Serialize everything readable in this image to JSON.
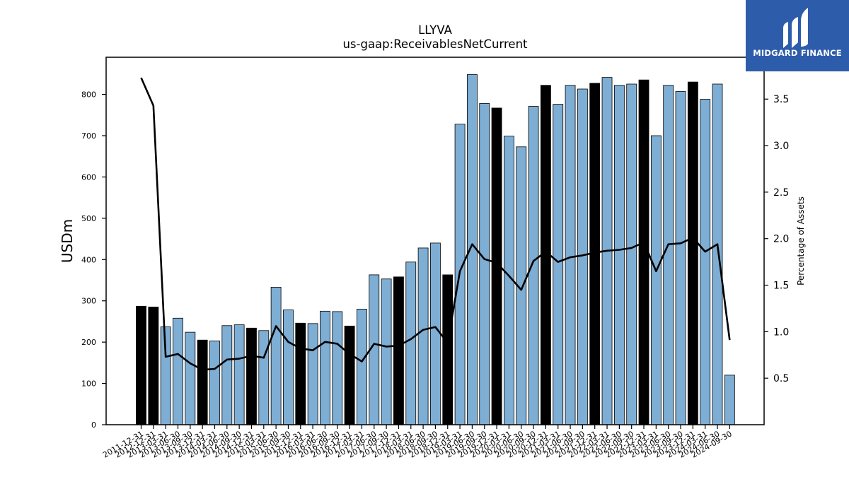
{
  "chart_data": {
    "type": "bar",
    "title": "LLYVA",
    "subtitle": "us-gaap:ReceivablesNetCurrent",
    "ylabel": "USDm",
    "y2label": "Percentage of Assets",
    "ylim": [
      0,
      890
    ],
    "y2lim": [
      0.0,
      3.95
    ],
    "yticks": [
      0,
      100,
      200,
      300,
      400,
      500,
      600,
      700,
      800
    ],
    "y2ticks": [
      0.5,
      1.0,
      1.5,
      2.0,
      2.5,
      3.0,
      3.5
    ],
    "bar_color": "#7eaed4",
    "highlight_color": "#000000",
    "line_color": "#000000",
    "categories": [
      "2011-12-31",
      "2012-12-31",
      "2013-03-31",
      "2013-06-30",
      "2013-09-30",
      "2013-12-31",
      "2014-03-31",
      "2014-06-30",
      "2014-09-30",
      "2014-12-31",
      "2015-03-31",
      "2015-06-30",
      "2015-09-30",
      "2015-12-31",
      "2016-03-31",
      "2016-06-30",
      "2016-09-30",
      "2016-12-31",
      "2017-03-31",
      "2017-06-30",
      "2017-09-30",
      "2017-12-31",
      "2018-03-31",
      "2018-06-30",
      "2018-09-30",
      "2018-12-31",
      "2019-03-31",
      "2019-06-30",
      "2019-09-30",
      "2019-12-31",
      "2020-03-31",
      "2020-06-30",
      "2020-09-30",
      "2020-12-31",
      "2021-03-31",
      "2021-06-30",
      "2021-09-30",
      "2021-12-31",
      "2022-03-31",
      "2022-06-30",
      "2022-09-30",
      "2022-12-31",
      "2023-03-31",
      "2023-06-30",
      "2023-09-30",
      "2023-12-31",
      "2024-03-31",
      "2024-06-30",
      "2024-09-30"
    ],
    "series": [
      {
        "type": "bar",
        "values": [
          287,
          285,
          237,
          258,
          224,
          205,
          203,
          240,
          242,
          234,
          228,
          333,
          278,
          246,
          245,
          275,
          274,
          239,
          280,
          363,
          353,
          358,
          394,
          428,
          440,
          363,
          728,
          848,
          778,
          767,
          699,
          673,
          771,
          822,
          776,
          822,
          813,
          827,
          841,
          822,
          825,
          835,
          700,
          822,
          807,
          830,
          788,
          825,
          120
        ],
        "highlight": [
          true,
          true,
          false,
          false,
          false,
          true,
          false,
          false,
          false,
          true,
          false,
          false,
          false,
          true,
          false,
          false,
          false,
          true,
          false,
          false,
          false,
          true,
          false,
          false,
          false,
          true,
          false,
          false,
          false,
          true,
          false,
          false,
          false,
          true,
          false,
          false,
          false,
          true,
          false,
          false,
          false,
          true,
          false,
          false,
          false,
          true,
          false,
          false,
          false
        ]
      },
      {
        "type": "line",
        "axis": "right",
        "values": [
          3.73,
          3.43,
          0.73,
          0.76,
          0.66,
          0.59,
          0.6,
          0.7,
          0.71,
          0.74,
          0.72,
          1.06,
          0.89,
          0.82,
          0.8,
          0.89,
          0.87,
          0.76,
          0.68,
          0.87,
          0.84,
          0.85,
          0.92,
          1.02,
          1.05,
          0.88,
          1.65,
          1.94,
          1.78,
          1.74,
          1.6,
          1.45,
          1.76,
          1.86,
          1.75,
          1.8,
          1.82,
          1.85,
          1.87,
          1.88,
          1.9,
          1.96,
          1.65,
          1.94,
          1.95,
          2.01,
          1.86,
          1.94,
          0.91
        ]
      }
    ]
  },
  "logo": {
    "text": "MIDGARD FINANCE",
    "background": "#2d5cab"
  }
}
